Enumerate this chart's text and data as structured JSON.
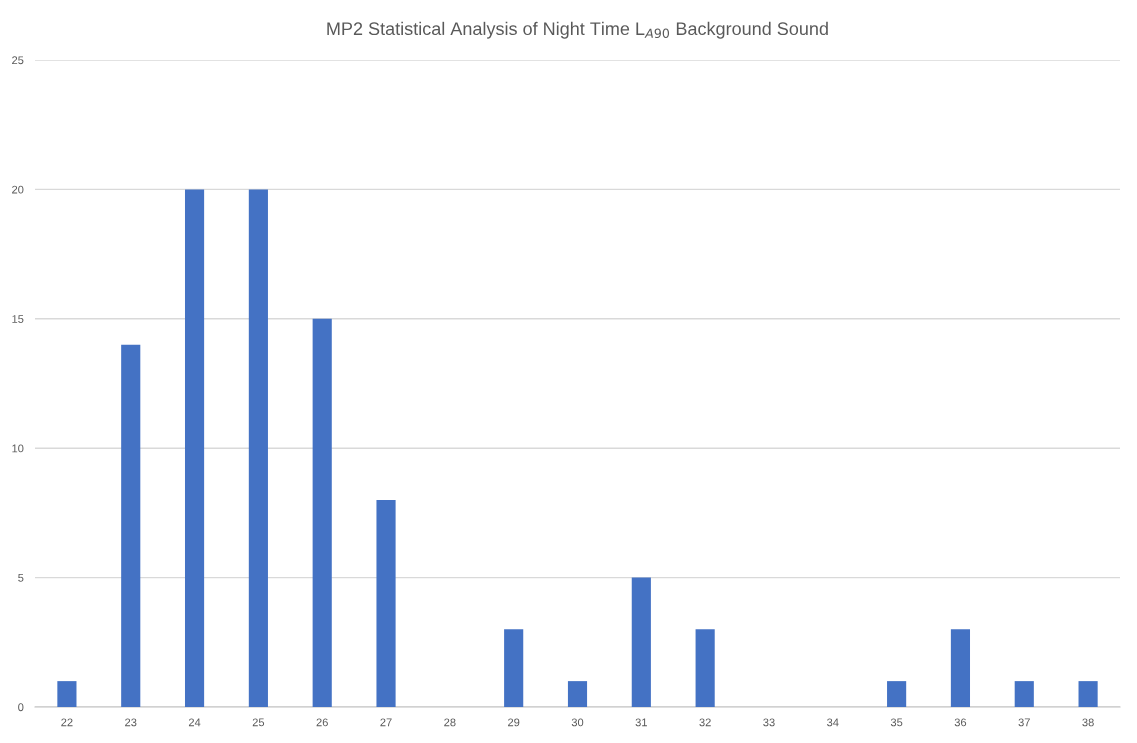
{
  "chart_data": {
    "type": "bar",
    "title": "MP2 Statistical Analysis of Night Time L$_{A90}$ Background Sound",
    "categories": [
      "22",
      "23",
      "24",
      "25",
      "26",
      "27",
      "28",
      "29",
      "30",
      "31",
      "32",
      "33",
      "34",
      "35",
      "36",
      "37",
      "38"
    ],
    "values": [
      1,
      14,
      20,
      20,
      15,
      8,
      0,
      3,
      1,
      5,
      3,
      0,
      0,
      1,
      3,
      1,
      1
    ],
    "color": "#4472c4",
    "ylim": [
      0,
      25
    ],
    "yticks": [
      0,
      5,
      10,
      15,
      20,
      25
    ],
    "grid": "y"
  }
}
